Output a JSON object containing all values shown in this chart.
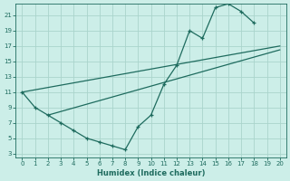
{
  "xlabel": "Humidex (Indice chaleur)",
  "bg_color": "#cceee8",
  "grid_color": "#aad4cc",
  "line_color": "#1e6b5e",
  "xlim_min": -0.5,
  "xlim_max": 20.5,
  "ylim_min": 2.5,
  "ylim_max": 22.5,
  "xticks": [
    0,
    1,
    2,
    3,
    4,
    5,
    6,
    7,
    8,
    9,
    10,
    11,
    12,
    13,
    14,
    15,
    16,
    17,
    18,
    19,
    20
  ],
  "yticks": [
    3,
    5,
    7,
    9,
    11,
    13,
    15,
    17,
    19,
    21
  ],
  "curve_x": [
    0,
    1,
    2,
    3,
    4,
    5,
    6,
    7,
    8,
    9,
    10,
    11,
    12,
    13,
    14,
    15,
    16,
    17,
    18
  ],
  "curve_y": [
    11,
    9,
    8,
    7,
    6,
    5,
    4.5,
    4,
    3.5,
    6.5,
    8,
    12,
    14.5,
    19,
    18,
    22,
    22.5,
    21.5,
    20
  ],
  "line1_x": [
    0,
    20
  ],
  "line1_y": [
    11,
    17
  ],
  "line2_x": [
    2,
    20
  ],
  "line2_y": [
    8,
    16.5
  ]
}
